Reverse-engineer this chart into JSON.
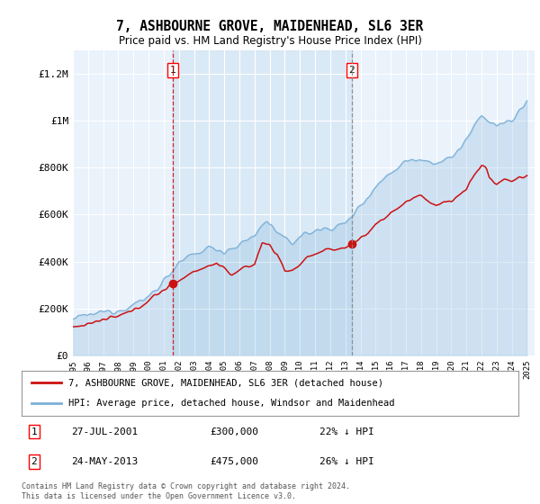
{
  "title": "7, ASHBOURNE GROVE, MAIDENHEAD, SL6 3ER",
  "subtitle": "Price paid vs. HM Land Registry's House Price Index (HPI)",
  "fig_bg_color": "#ffffff",
  "plot_bg_color": "#eaf2fb",
  "shade_between_color": "#d0e4f5",
  "ylim": [
    0,
    1300000
  ],
  "yticks": [
    0,
    200000,
    400000,
    600000,
    800000,
    1000000,
    1200000
  ],
  "ytick_labels": [
    "£0",
    "£200K",
    "£400K",
    "£600K",
    "£800K",
    "£1M",
    "£1.2M"
  ],
  "hpi_color": "#7ab0d8",
  "price_color": "#cc1111",
  "marker1_date": "27-JUL-2001",
  "marker1_price": "£300,000",
  "marker1_hpi": "22% ↓ HPI",
  "marker2_date": "24-MAY-2013",
  "marker2_price": "£475,000",
  "marker2_hpi": "26% ↓ HPI",
  "legend_line1": "7, ASHBOURNE GROVE, MAIDENHEAD, SL6 3ER (detached house)",
  "legend_line2": "HPI: Average price, detached house, Windsor and Maidenhead",
  "footer": "Contains HM Land Registry data © Crown copyright and database right 2024.\nThis data is licensed under the Open Government Licence v3.0."
}
